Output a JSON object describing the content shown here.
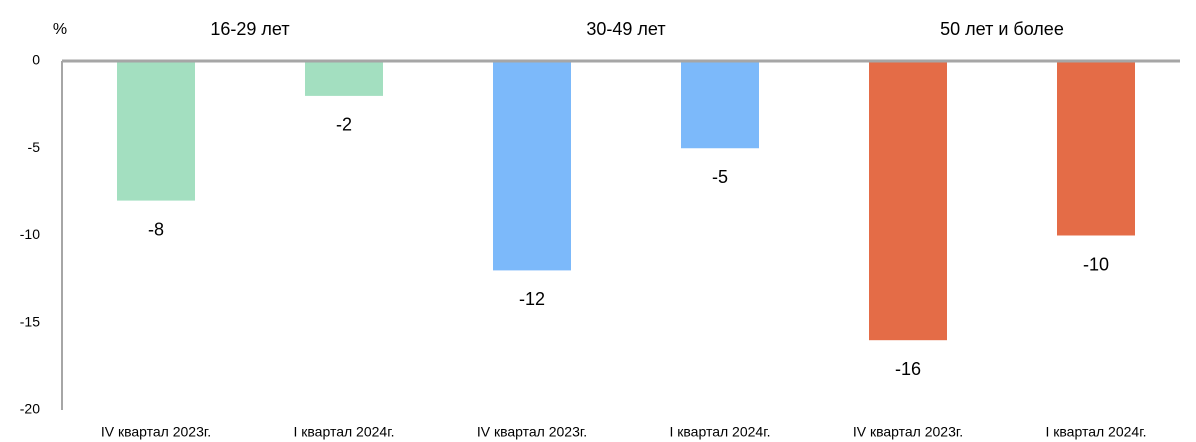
{
  "chart_data": {
    "type": "bar",
    "y_label": "%",
    "annotations": [
      "16-29 лет",
      "30-49 лет",
      "50 лет и более"
    ],
    "categories": [
      "IV квартал 2023г.",
      "I квартал 2024г.",
      "IV квартал 2023г.",
      "I квартал 2024г.",
      "IV квартал 2023г.",
      "I квартал 2024г."
    ],
    "values": [
      -8,
      -2,
      -12,
      -5,
      -16,
      -10
    ],
    "colors": [
      "#a3dfc0",
      "#a3dfc0",
      "#7cb9fa",
      "#7cb9fa",
      "#e46c47",
      "#e46c47"
    ],
    "ylim": [
      -20,
      0
    ],
    "yticks": [
      0,
      -5,
      -10,
      -15,
      -20
    ],
    "grid": false
  }
}
